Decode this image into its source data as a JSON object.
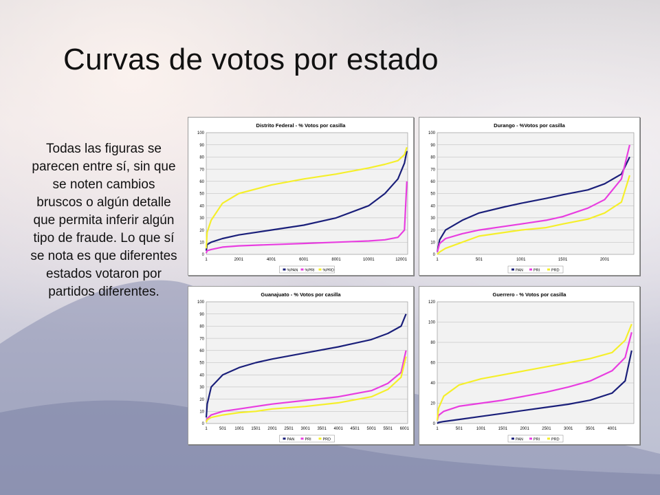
{
  "slide": {
    "title": "Curvas de votos por estado",
    "body": "Todas las figuras se parecen entre sí, sin que se noten cambios bruscos o algún detalle que permita inferir algún tipo de fraude. Lo que sí se nota es que diferentes estados votaron por partidos diferentes."
  },
  "colors": {
    "PAN": "#1a1f7a",
    "PRI": "#e83de0",
    "PRD": "#f5ef2a"
  },
  "chart_data": [
    {
      "type": "line",
      "title": "Distrito Federal - % Votos por casilla",
      "xlim": [
        1,
        12400
      ],
      "ylim": [
        0,
        100
      ],
      "xticks": [
        "1",
        "2001",
        "4001",
        "6001",
        "8001",
        "10001",
        "12001"
      ],
      "xtick_values": [
        1,
        2001,
        4001,
        6001,
        8001,
        10001,
        12001
      ],
      "yticks": [
        0,
        10,
        20,
        30,
        40,
        50,
        60,
        70,
        80,
        90,
        100
      ],
      "legend": [
        "%PAN",
        "%PRI",
        "%PRD"
      ],
      "legend_position": "bottom",
      "series": [
        {
          "name": "%PAN",
          "x": [
            1,
            50,
            300,
            1000,
            2001,
            4001,
            6001,
            8001,
            10001,
            11000,
            11800,
            12200,
            12350
          ],
          "values": [
            3,
            8,
            10,
            13,
            16,
            20,
            24,
            30,
            40,
            50,
            62,
            75,
            85
          ]
        },
        {
          "name": "%PRI",
          "x": [
            1,
            50,
            300,
            1000,
            2001,
            4001,
            6001,
            8001,
            10001,
            11000,
            11800,
            12200,
            12350
          ],
          "values": [
            1,
            3,
            4,
            6,
            7,
            8,
            9,
            10,
            11,
            12,
            14,
            20,
            60
          ]
        },
        {
          "name": "%PRD",
          "x": [
            1,
            50,
            300,
            1000,
            2001,
            4001,
            6001,
            8001,
            10001,
            11000,
            11800,
            12200,
            12350
          ],
          "values": [
            5,
            18,
            28,
            42,
            50,
            57,
            62,
            66,
            71,
            74,
            77,
            82,
            88
          ]
        }
      ]
    },
    {
      "type": "line",
      "title": "Durango - %Votos por casilla",
      "xlim": [
        1,
        2350
      ],
      "ylim": [
        0,
        100
      ],
      "xticks": [
        "1",
        "501",
        "1001",
        "1501",
        "2001"
      ],
      "xtick_values": [
        1,
        501,
        1001,
        1501,
        2001
      ],
      "yticks": [
        0,
        10,
        20,
        30,
        40,
        50,
        60,
        70,
        80,
        90,
        100
      ],
      "legend": [
        "PAN",
        "PRI",
        "PRD"
      ],
      "legend_position": "bottom",
      "series": [
        {
          "name": "PAN",
          "x": [
            1,
            30,
            100,
            300,
            501,
            801,
            1001,
            1301,
            1501,
            1801,
            2001,
            2201,
            2300
          ],
          "values": [
            2,
            12,
            20,
            28,
            34,
            39,
            42,
            46,
            49,
            53,
            58,
            66,
            80
          ]
        },
        {
          "name": "PRI",
          "x": [
            1,
            30,
            100,
            300,
            501,
            801,
            1001,
            1301,
            1501,
            1801,
            2001,
            2201,
            2300
          ],
          "values": [
            2,
            9,
            13,
            17,
            20,
            23,
            25,
            28,
            31,
            38,
            45,
            62,
            90
          ]
        },
        {
          "name": "PRD",
          "x": [
            1,
            30,
            100,
            300,
            501,
            801,
            1001,
            1301,
            1501,
            1801,
            2001,
            2201,
            2300
          ],
          "values": [
            0,
            2,
            5,
            10,
            15,
            18,
            20,
            22,
            25,
            29,
            34,
            43,
            65
          ]
        }
      ]
    },
    {
      "type": "line",
      "title": "Guanajuato - % Votos por casilla",
      "xlim": [
        1,
        6100
      ],
      "ylim": [
        0,
        100
      ],
      "xticks": [
        "1",
        "501",
        "1001",
        "1501",
        "2001",
        "2501",
        "3001",
        "3501",
        "4001",
        "4501",
        "5001",
        "5501",
        "6001"
      ],
      "xtick_values": [
        1,
        501,
        1001,
        1501,
        2001,
        2501,
        3001,
        3501,
        4001,
        4501,
        5001,
        5501,
        6001
      ],
      "yticks": [
        0,
        10,
        20,
        30,
        40,
        50,
        60,
        70,
        80,
        90,
        100
      ],
      "legend": [
        "PAN",
        "PRI",
        "PRD"
      ],
      "legend_position": "bottom",
      "series": [
        {
          "name": "PAN",
          "x": [
            1,
            30,
            150,
            501,
            1001,
            1501,
            2001,
            3001,
            4001,
            5001,
            5501,
            5900,
            6050
          ],
          "values": [
            5,
            16,
            30,
            40,
            46,
            50,
            53,
            58,
            63,
            69,
            74,
            80,
            90
          ]
        },
        {
          "name": "PRI",
          "x": [
            1,
            30,
            150,
            501,
            1001,
            1501,
            2001,
            3001,
            4001,
            5001,
            5501,
            5900,
            6050
          ],
          "values": [
            2,
            4,
            7,
            10,
            12,
            14,
            16,
            19,
            22,
            27,
            33,
            42,
            60
          ]
        },
        {
          "name": "PRD",
          "x": [
            1,
            30,
            150,
            501,
            1001,
            1501,
            2001,
            3001,
            4001,
            5001,
            5501,
            5900,
            6050
          ],
          "values": [
            1,
            3,
            5,
            7,
            9,
            10,
            12,
            14,
            17,
            22,
            28,
            38,
            55
          ]
        }
      ]
    },
    {
      "type": "line",
      "title": "Guerrero - % Votos por casilla",
      "xlim": [
        1,
        4500
      ],
      "ylim": [
        0,
        120
      ],
      "xticks": [
        "1",
        "501",
        "1001",
        "1501",
        "2001",
        "2501",
        "3001",
        "3501",
        "4001"
      ],
      "xtick_values": [
        1,
        501,
        1001,
        1501,
        2001,
        2501,
        3001,
        3501,
        4001
      ],
      "yticks": [
        0,
        20,
        40,
        60,
        80,
        100,
        120
      ],
      "legend": [
        "PAN",
        "PRI",
        "PRD"
      ],
      "legend_position": "bottom",
      "series": [
        {
          "name": "PAN",
          "x": [
            1,
            30,
            150,
            501,
            1001,
            1501,
            2001,
            2501,
            3001,
            3501,
            4001,
            4300,
            4450
          ],
          "values": [
            0,
            1,
            2,
            4,
            7,
            10,
            13,
            16,
            19,
            23,
            30,
            42,
            72
          ]
        },
        {
          "name": "PRI",
          "x": [
            1,
            30,
            150,
            501,
            1001,
            1501,
            2001,
            2501,
            3001,
            3501,
            4001,
            4300,
            4450
          ],
          "values": [
            3,
            8,
            12,
            17,
            20,
            23,
            27,
            31,
            36,
            42,
            52,
            65,
            90
          ]
        },
        {
          "name": "PRD",
          "x": [
            1,
            30,
            150,
            501,
            1001,
            1501,
            2001,
            2501,
            3001,
            3501,
            4001,
            4300,
            4450
          ],
          "values": [
            3,
            15,
            27,
            38,
            44,
            48,
            52,
            56,
            60,
            64,
            70,
            82,
            98
          ]
        }
      ]
    }
  ]
}
